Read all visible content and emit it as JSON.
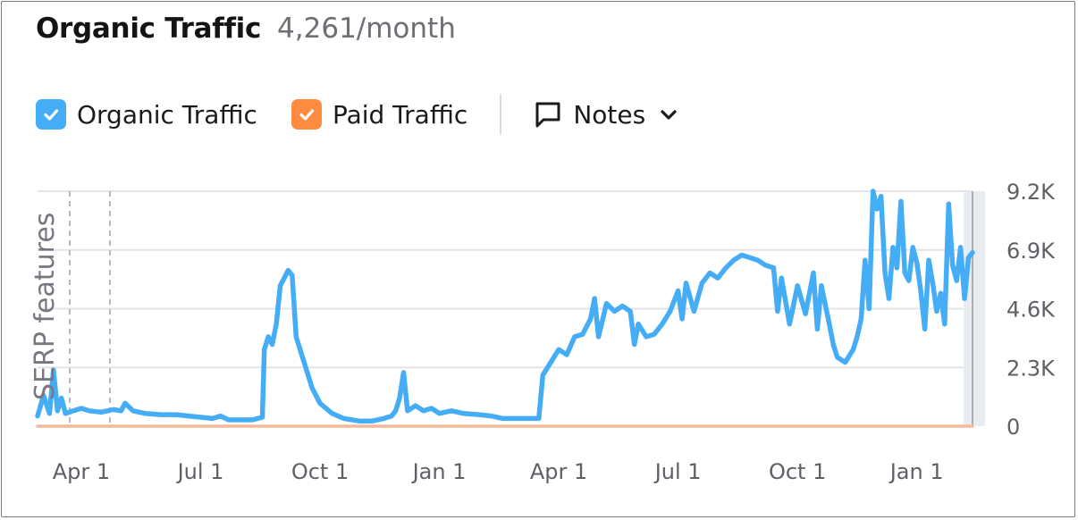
{
  "header": {
    "title": "Organic Traffic",
    "subtitle": "4,261/month"
  },
  "legend": {
    "organic": {
      "label": "Organic Traffic",
      "color": "#45adf5",
      "checked": true
    },
    "paid": {
      "label": "Paid Traffic",
      "color": "#ff8c3e",
      "checked": true
    },
    "notes": {
      "label": "Notes",
      "icon": "comment-icon",
      "dropdown_icon": "chevron-down-icon"
    }
  },
  "colors": {
    "grid": "#e3e4ea",
    "axis_text": "#5f5f66",
    "organic_line": "#45adf5",
    "paid_line": "#f5b99a"
  },
  "chart_data": {
    "type": "line",
    "side_label": "SERP features",
    "x_ticks": [
      "Apr 1",
      "Jul 1",
      "Oct 1",
      "Jan 1",
      "Apr 1",
      "Jul 1",
      "Oct 1",
      "Jan 1"
    ],
    "y_ticks": [
      "0",
      "2.3K",
      "4.6K",
      "6.9K",
      "9.2K"
    ],
    "ylim": [
      0,
      9200
    ],
    "x_range_months": [
      -1.1,
      22.4
    ],
    "y_axis_position": "right",
    "grid": true,
    "series": [
      {
        "name": "Organic Traffic",
        "points": [
          [
            -1.1,
            400
          ],
          [
            -0.95,
            1200
          ],
          [
            -0.8,
            500
          ],
          [
            -0.7,
            2200
          ],
          [
            -0.6,
            600
          ],
          [
            -0.5,
            1100
          ],
          [
            -0.4,
            500
          ],
          [
            -0.2,
            600
          ],
          [
            0.0,
            700
          ],
          [
            0.2,
            600
          ],
          [
            0.5,
            550
          ],
          [
            0.8,
            650
          ],
          [
            1.0,
            600
          ],
          [
            1.1,
            900
          ],
          [
            1.3,
            600
          ],
          [
            1.6,
            500
          ],
          [
            2.0,
            450
          ],
          [
            2.4,
            450
          ],
          [
            2.7,
            400
          ],
          [
            3.0,
            350
          ],
          [
            3.3,
            300
          ],
          [
            3.5,
            400
          ],
          [
            3.7,
            250
          ],
          [
            4.0,
            250
          ],
          [
            4.3,
            250
          ],
          [
            4.55,
            350
          ],
          [
            4.6,
            3000
          ],
          [
            4.7,
            3500
          ],
          [
            4.8,
            3200
          ],
          [
            4.9,
            4000
          ],
          [
            5.0,
            5500
          ],
          [
            5.1,
            5800
          ],
          [
            5.2,
            6100
          ],
          [
            5.3,
            5900
          ],
          [
            5.4,
            3500
          ],
          [
            5.6,
            2500
          ],
          [
            5.8,
            1500
          ],
          [
            6.0,
            900
          ],
          [
            6.3,
            500
          ],
          [
            6.6,
            300
          ],
          [
            7.0,
            200
          ],
          [
            7.3,
            200
          ],
          [
            7.6,
            300
          ],
          [
            7.8,
            400
          ],
          [
            7.9,
            600
          ],
          [
            8.0,
            1100
          ],
          [
            8.1,
            2100
          ],
          [
            8.2,
            600
          ],
          [
            8.4,
            800
          ],
          [
            8.6,
            600
          ],
          [
            8.8,
            700
          ],
          [
            9.0,
            500
          ],
          [
            9.3,
            600
          ],
          [
            9.6,
            500
          ],
          [
            10.0,
            450
          ],
          [
            10.3,
            400
          ],
          [
            10.6,
            300
          ],
          [
            11.0,
            300
          ],
          [
            11.3,
            300
          ],
          [
            11.5,
            300
          ],
          [
            11.6,
            2000
          ],
          [
            11.8,
            2500
          ],
          [
            12.0,
            3000
          ],
          [
            12.2,
            2800
          ],
          [
            12.4,
            3500
          ],
          [
            12.6,
            3600
          ],
          [
            12.8,
            4200
          ],
          [
            12.9,
            5000
          ],
          [
            13.0,
            3500
          ],
          [
            13.2,
            4800
          ],
          [
            13.4,
            4500
          ],
          [
            13.6,
            4700
          ],
          [
            13.8,
            4500
          ],
          [
            13.9,
            3200
          ],
          [
            14.0,
            4000
          ],
          [
            14.2,
            3500
          ],
          [
            14.4,
            3600
          ],
          [
            14.6,
            4000
          ],
          [
            14.8,
            4500
          ],
          [
            15.0,
            5300
          ],
          [
            15.1,
            4200
          ],
          [
            15.2,
            5600
          ],
          [
            15.4,
            4500
          ],
          [
            15.6,
            5600
          ],
          [
            15.8,
            6000
          ],
          [
            16.0,
            5800
          ],
          [
            16.2,
            6200
          ],
          [
            16.4,
            6500
          ],
          [
            16.6,
            6700
          ],
          [
            16.8,
            6600
          ],
          [
            17.0,
            6500
          ],
          [
            17.2,
            6300
          ],
          [
            17.4,
            6200
          ],
          [
            17.5,
            4500
          ],
          [
            17.6,
            5800
          ],
          [
            17.8,
            4000
          ],
          [
            18.0,
            5500
          ],
          [
            18.2,
            4400
          ],
          [
            18.4,
            6000
          ],
          [
            18.5,
            3800
          ],
          [
            18.6,
            5500
          ],
          [
            18.8,
            4000
          ],
          [
            18.9,
            3200
          ],
          [
            19.0,
            2700
          ],
          [
            19.2,
            2500
          ],
          [
            19.4,
            3000
          ],
          [
            19.5,
            3500
          ],
          [
            19.6,
            4200
          ],
          [
            19.7,
            6500
          ],
          [
            19.8,
            4600
          ],
          [
            19.9,
            9200
          ],
          [
            20.0,
            8500
          ],
          [
            20.1,
            9000
          ],
          [
            20.2,
            6000
          ],
          [
            20.3,
            5000
          ],
          [
            20.4,
            7000
          ],
          [
            20.5,
            6200
          ],
          [
            20.6,
            8800
          ],
          [
            20.7,
            6000
          ],
          [
            20.8,
            5700
          ],
          [
            20.9,
            7000
          ],
          [
            21.0,
            6400
          ],
          [
            21.1,
            5300
          ],
          [
            21.2,
            3800
          ],
          [
            21.3,
            6500
          ],
          [
            21.4,
            5600
          ],
          [
            21.5,
            4500
          ],
          [
            21.6,
            5200
          ],
          [
            21.7,
            4000
          ],
          [
            21.8,
            8700
          ],
          [
            21.9,
            6300
          ],
          [
            22.0,
            5700
          ],
          [
            22.1,
            7000
          ],
          [
            22.2,
            5000
          ],
          [
            22.3,
            6600
          ],
          [
            22.4,
            6800
          ]
        ]
      },
      {
        "name": "Paid Traffic",
        "points": [
          [
            -1.1,
            0
          ],
          [
            22.4,
            0
          ]
        ]
      }
    ]
  }
}
